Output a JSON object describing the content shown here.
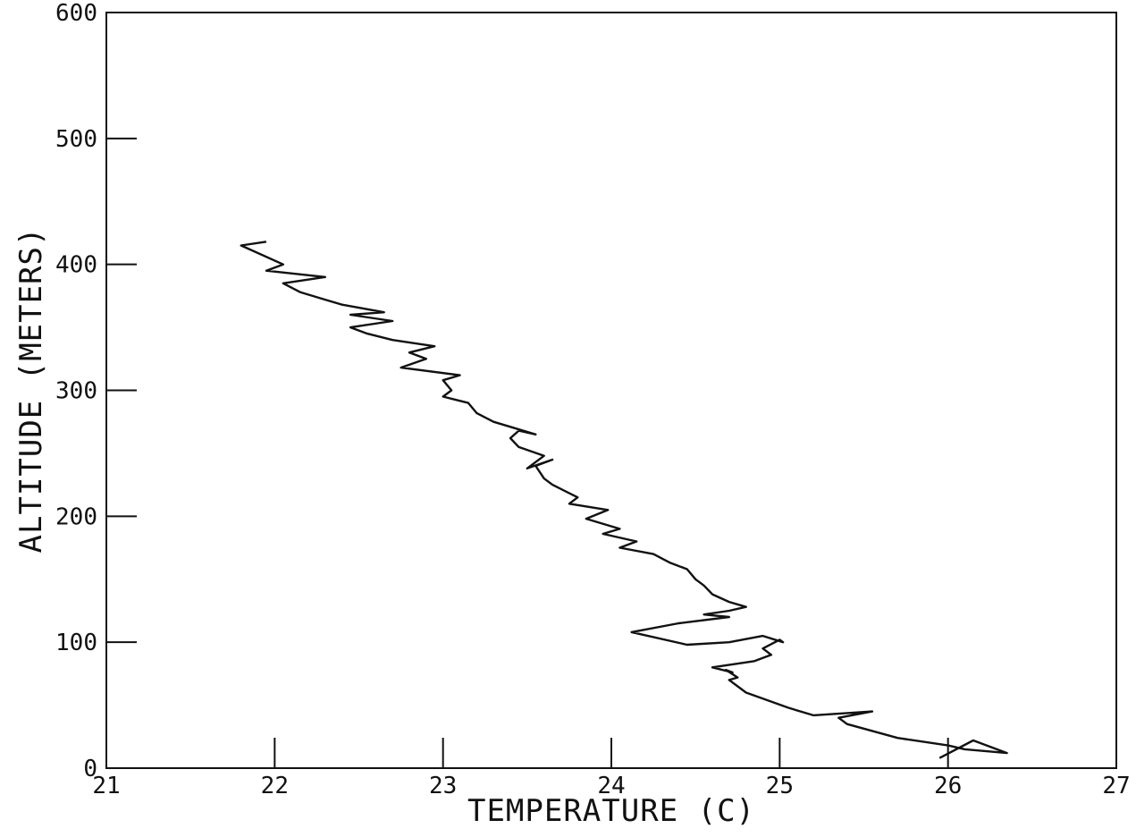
{
  "chart_data": {
    "type": "line",
    "title": "",
    "xlabel": "TEMPERATURE  (C)",
    "ylabel": "ALTITUDE (METERS)",
    "xlim": [
      21,
      27
    ],
    "ylim": [
      0,
      600
    ],
    "xticks": [
      "21",
      "22",
      "23",
      "24",
      "25",
      "26",
      "27"
    ],
    "yticks": [
      "0",
      "100",
      "200",
      "300",
      "400",
      "500",
      "600"
    ],
    "grid": false,
    "series": [
      {
        "x": [
          25.95,
          26.15,
          26.35,
          26.1,
          26.0,
          25.7,
          25.4,
          25.35,
          25.55,
          25.2,
          25.05,
          24.8,
          24.7,
          24.75,
          24.68,
          24.72,
          24.6,
          24.85,
          24.95,
          24.9,
          25.0,
          25.02,
          24.9,
          24.7,
          24.45,
          24.12,
          24.4,
          24.7,
          24.55,
          24.7,
          24.8,
          24.7,
          24.6,
          24.55,
          24.5,
          24.45,
          24.35,
          24.25,
          24.05,
          24.15,
          23.95,
          24.05,
          23.85,
          23.98,
          23.75,
          23.8,
          23.65,
          23.6,
          23.55,
          23.65,
          23.5,
          23.6,
          23.45,
          23.4,
          23.45,
          23.55,
          23.3,
          23.2,
          23.15,
          23.0,
          23.05,
          23.0,
          23.1,
          22.75,
          22.9,
          22.8,
          22.95,
          22.7,
          22.55,
          22.45,
          22.7,
          22.45,
          22.65,
          22.4,
          22.3,
          22.15,
          22.05,
          22.3,
          21.95,
          22.05,
          21.8,
          21.95
        ],
        "y": [
          8,
          22,
          12,
          15,
          18,
          24,
          35,
          40,
          45,
          42,
          48,
          60,
          70,
          72,
          78,
          76,
          80,
          85,
          90,
          95,
          102,
          100,
          105,
          100,
          98,
          108,
          115,
          120,
          122,
          125,
          128,
          132,
          138,
          145,
          150,
          158,
          163,
          170,
          175,
          180,
          186,
          190,
          198,
          205,
          210,
          215,
          225,
          230,
          240,
          245,
          238,
          248,
          255,
          262,
          268,
          265,
          275,
          282,
          290,
          295,
          300,
          308,
          312,
          318,
          325,
          330,
          335,
          340,
          345,
          350,
          355,
          360,
          362,
          368,
          372,
          378,
          385,
          390,
          395,
          400,
          415,
          418
        ]
      }
    ]
  }
}
